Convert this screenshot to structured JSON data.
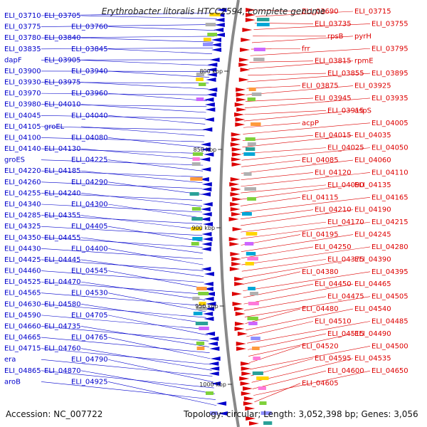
{
  "title": "Erythrobacter litoralis HTCC2594, complete genome",
  "footer": {
    "accession": "Accession: NC_007722",
    "summary": "Topology: circular; Length: 3,052,398 bp; Genes: 3,056"
  },
  "ticks": [
    "800 kbp",
    "850 kbp",
    "900 kbp",
    "950 kbp",
    "1000 kbp"
  ],
  "colors": {
    "reverse": "#0000cc",
    "forward": "#dd0000",
    "backbone": "#888888"
  },
  "left_labels": [
    "ELI_03710",
    "ELI_03705",
    "ELI_03775",
    "ELI_03760",
    "ELI_03780",
    "ELI_03840",
    "ELI_03835",
    "ELI_03845",
    "dapF",
    "ELI_03905",
    "ELI_03900",
    "ELI_03940",
    "ELI_03930",
    "ELI_03975",
    "ELI_03970",
    "ELI_03960",
    "ELI_03980",
    "ELI_04010",
    "ELI_04045",
    "ELI_04040",
    "ELI_04105",
    "groEL",
    "ELI_04100",
    "ELI_04080",
    "ELI_04140",
    "ELI_04130",
    "groES",
    "ELI_04225",
    "ELI_04220",
    "ELI_04185",
    "ELI_04260",
    "ELI_04290",
    "ELI_04255",
    "ELI_04240",
    "ELI_04340",
    "ELI_04300",
    "ELI_04285",
    "ELI_04355",
    "ELI_04325",
    "ELI_04405",
    "ELI_04350",
    "ELI_04455",
    "ELI_04430",
    "ELI_04400",
    "ELI_04425",
    "ELI_04445",
    "ELI_04460",
    "ELI_04545",
    "ELI_04525",
    "ELI_04470",
    "ELI_04565",
    "ELI_04530",
    "ELI_04630",
    "ELI_04580",
    "ELI_04590",
    "ELI_04705",
    "ELI_04660",
    "ELI_04735",
    "ELI_04665",
    "ELI_04765",
    "ELI_04715",
    "ELI_04760",
    "era",
    "ELI_04790",
    "ELI_04865",
    "ELI_04870",
    "aroB",
    "ELI_04925"
  ],
  "right_labels": [
    "ELI_03690",
    "ELI_03715",
    "ELI_03735",
    "ELI_03755",
    "rpsB",
    "pyrH",
    "frr",
    "ELI_03795",
    "ELI_03815",
    "rpmE",
    "ELI_03855",
    "ELI_03895",
    "ELI_03875",
    "ELI_03925",
    "ELI_03945",
    "ELI_03935",
    "ELI_03915",
    "aspS",
    "acpP",
    "ELI_04005",
    "ELI_04015",
    "ELI_04035",
    "ELI_04025",
    "ELI_04050",
    "ELI_04085",
    "ELI_04060",
    "ELI_04120",
    "ELI_04110",
    "ELI_04090",
    "ELI_04135",
    "ELI_04115",
    "ELI_04165",
    "ELI_04210",
    "ELI_04190",
    "ELI_04170",
    "ELI_04215",
    "ELI_04195",
    "ELI_04245",
    "ELI_04250",
    "ELI_04280",
    "ELI_04375",
    "ELI_04390",
    "ELI_04380",
    "ELI_04395",
    "ELI_04450",
    "ELI_04465",
    "ELI_04475",
    "ELI_04505",
    "ELI_04480",
    "ELI_04540",
    "ELI_04510",
    "ELI_04485",
    "ELI_04515",
    "ELI_04490",
    "ELI_04520",
    "ELI_04500",
    "ELI_04595",
    "ELI_04535",
    "ELI_04600",
    "ELI_04650",
    "ELI_04605"
  ]
}
